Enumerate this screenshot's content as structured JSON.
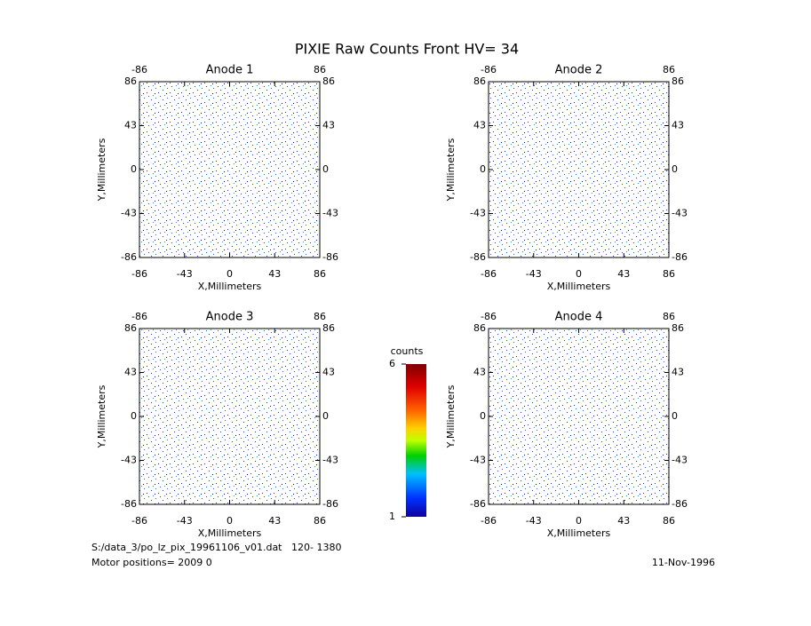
{
  "title": "PIXIE Raw Counts Front HV= 34",
  "chart_data": [
    {
      "type": "heatmap",
      "title": "Anode 1",
      "xlabel": "X,Millimeters",
      "ylabel": "Y,Millimeters",
      "xlim": [
        -86,
        86
      ],
      "ylim": [
        -86,
        86
      ],
      "xticks": [
        -86,
        -43,
        0,
        43,
        86
      ],
      "yticks": [
        -86,
        -43,
        0,
        43,
        86
      ],
      "top_ticks": [
        -86,
        86
      ]
    },
    {
      "type": "heatmap",
      "title": "Anode 2",
      "xlabel": "X,Millimeters",
      "ylabel": "Y,Millimeters",
      "xlim": [
        -86,
        86
      ],
      "ylim": [
        -86,
        86
      ],
      "xticks": [
        -86,
        -43,
        0,
        43,
        86
      ],
      "yticks": [
        -86,
        -43,
        0,
        43,
        86
      ],
      "top_ticks": [
        -86,
        86
      ]
    },
    {
      "type": "heatmap",
      "title": "Anode 3",
      "xlabel": "X,Millimeters",
      "ylabel": "Y,Millimeters",
      "xlim": [
        -86,
        86
      ],
      "ylim": [
        -86,
        86
      ],
      "xticks": [
        -86,
        -43,
        0,
        43,
        86
      ],
      "yticks": [
        -86,
        -43,
        0,
        43,
        86
      ],
      "top_ticks": [
        -86,
        86
      ]
    },
    {
      "type": "heatmap",
      "title": "Anode 4",
      "xlabel": "X,Millimeters",
      "ylabel": "Y,Millimeters",
      "xlim": [
        -86,
        86
      ],
      "ylim": [
        -86,
        86
      ],
      "xticks": [
        -86,
        -43,
        0,
        43,
        86
      ],
      "yticks": [
        -86,
        -43,
        0,
        43,
        86
      ],
      "top_ticks": [
        -86,
        86
      ]
    }
  ],
  "colorbar": {
    "label": "counts",
    "lim": [
      1,
      6
    ],
    "ticks": [
      1,
      6
    ]
  },
  "footer": {
    "file": "S:/data_3/po_lz_pix_19961106_v01.dat   120- 1380",
    "motor": "Motor positions= 2009 0",
    "date": "11-Nov-1996"
  }
}
